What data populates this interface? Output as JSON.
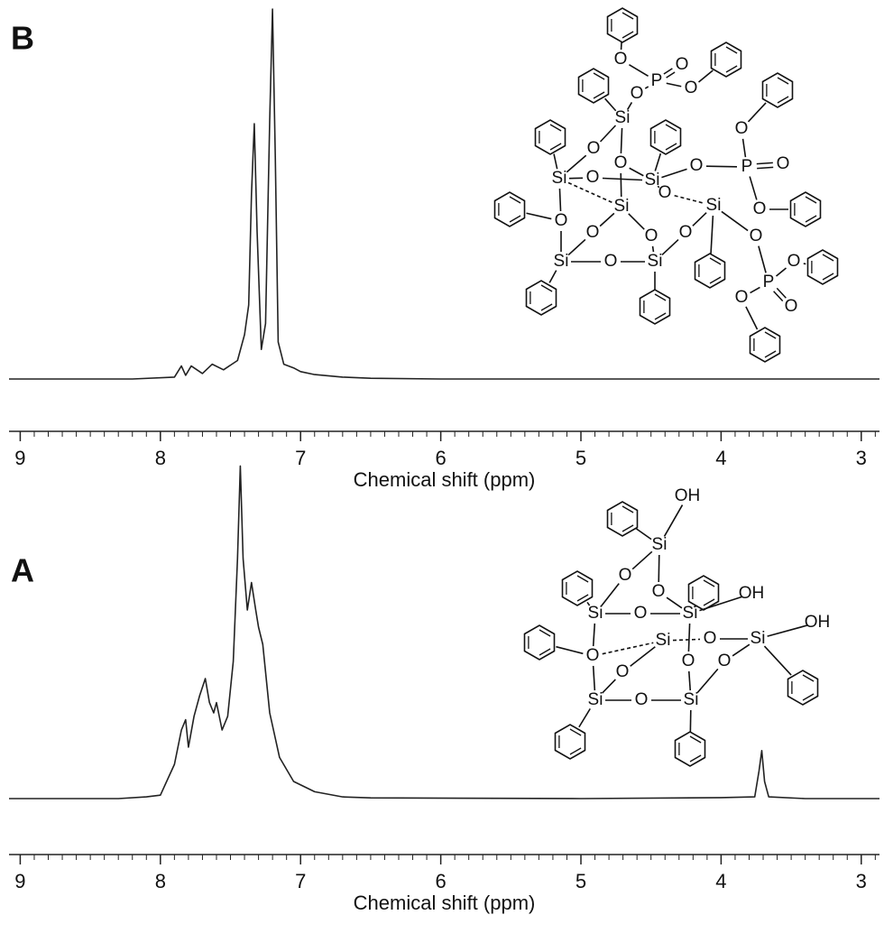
{
  "chart_data": [
    {
      "type": "line",
      "label": "B",
      "xlabel": "Chemical shift (ppm)",
      "color": "#222222",
      "xlim": [
        9.08,
        2.87
      ],
      "ylim": [
        0,
        100
      ],
      "xticks": [
        9,
        8,
        7,
        6,
        5,
        4,
        3
      ],
      "xminorticks": [
        9.0,
        8.9,
        8.8,
        8.7,
        8.6,
        8.5,
        8.4,
        8.3,
        8.2,
        8.1,
        8.0,
        7.9,
        7.8,
        7.7,
        7.6,
        7.5,
        7.4,
        7.3,
        7.2,
        7.1,
        7.0,
        6.9,
        6.8,
        6.7,
        6.6,
        6.5,
        6.4,
        6.3,
        6.2,
        6.1,
        6.0,
        5.9,
        5.8,
        5.7,
        5.6,
        5.5,
        5.4,
        5.3,
        5.2,
        5.1,
        5.0,
        4.9,
        4.8,
        4.7,
        4.6,
        4.5,
        4.4,
        4.3,
        4.2,
        4.1,
        4.0,
        3.9,
        3.8,
        3.7,
        3.6,
        3.5,
        3.4,
        3.3,
        3.2,
        3.1,
        3.0,
        2.9
      ],
      "x": [
        9.08,
        8.2,
        7.9,
        7.85,
        7.82,
        7.78,
        7.7,
        7.63,
        7.55,
        7.45,
        7.4,
        7.37,
        7.35,
        7.33,
        7.31,
        7.28,
        7.25,
        7.22,
        7.2,
        7.18,
        7.16,
        7.12,
        7.05,
        7.0,
        6.9,
        6.7,
        6.5,
        6.0,
        5.0,
        2.87
      ],
      "values": [
        0,
        0,
        0.5,
        3.5,
        1,
        3.5,
        1.5,
        4,
        2.5,
        5,
        12,
        20,
        50,
        69,
        40,
        8,
        15,
        70,
        100,
        60,
        10,
        4,
        3,
        2,
        1.2,
        0.5,
        0.2,
        0,
        0,
        0
      ],
      "structure": {
        "atoms": [
          "O",
          "P",
          "O",
          "O",
          "O",
          "Si",
          "O",
          "O",
          "Si",
          "O",
          "Si",
          "O",
          "P",
          "O",
          "O",
          "O",
          "Si",
          "O",
          "Si",
          "O",
          "O",
          "O",
          "Si",
          "O",
          "Si",
          "O",
          "O",
          "P",
          "O",
          "O",
          "O"
        ]
      }
    },
    {
      "type": "line",
      "label": "A",
      "xlabel": "Chemical shift (ppm)",
      "color": "#222222",
      "xlim": [
        9.08,
        2.87
      ],
      "ylim": [
        0,
        100
      ],
      "xticks": [
        9,
        8,
        7,
        6,
        5,
        4,
        3
      ],
      "xminorticks": [
        9.0,
        8.9,
        8.8,
        8.7,
        8.6,
        8.5,
        8.4,
        8.3,
        8.2,
        8.1,
        8.0,
        7.9,
        7.8,
        7.7,
        7.6,
        7.5,
        7.4,
        7.3,
        7.2,
        7.1,
        7.0,
        6.9,
        6.8,
        6.7,
        6.6,
        6.5,
        6.4,
        6.3,
        6.2,
        6.1,
        6.0,
        5.9,
        5.8,
        5.7,
        5.6,
        5.5,
        5.4,
        5.3,
        5.2,
        5.1,
        5.0,
        4.9,
        4.8,
        4.7,
        4.6,
        4.5,
        4.4,
        4.3,
        4.2,
        4.1,
        4.0,
        3.9,
        3.8,
        3.7,
        3.6,
        3.5,
        3.4,
        3.3,
        3.2,
        3.1,
        3.0,
        2.9
      ],
      "x": [
        9.08,
        8.3,
        8.1,
        8.0,
        7.9,
        7.85,
        7.82,
        7.8,
        7.76,
        7.72,
        7.68,
        7.65,
        7.62,
        7.6,
        7.56,
        7.52,
        7.48,
        7.45,
        7.43,
        7.41,
        7.38,
        7.35,
        7.32,
        7.3,
        7.27,
        7.22,
        7.15,
        7.05,
        6.9,
        6.7,
        6.5,
        5.0,
        4.0,
        3.76,
        3.73,
        3.71,
        3.69,
        3.66,
        3.4,
        2.87
      ],
      "values": [
        0,
        0,
        0.5,
        1,
        10,
        20,
        23,
        15,
        24,
        30,
        35,
        28,
        25,
        28,
        20,
        24,
        40,
        70,
        97,
        70,
        55,
        63,
        55,
        50,
        45,
        25,
        12,
        5,
        2,
        0.5,
        0.2,
        0,
        0.3,
        0.5,
        8,
        14,
        5,
        0.5,
        0,
        0
      ],
      "structure": {
        "atoms": [
          "OH",
          "Si",
          "O",
          "O",
          "Si",
          "O",
          "Si",
          "OH",
          "Si",
          "O",
          "Si",
          "OH",
          "O",
          "O",
          "O",
          "O",
          "Si",
          "O",
          "Si"
        ]
      }
    }
  ]
}
